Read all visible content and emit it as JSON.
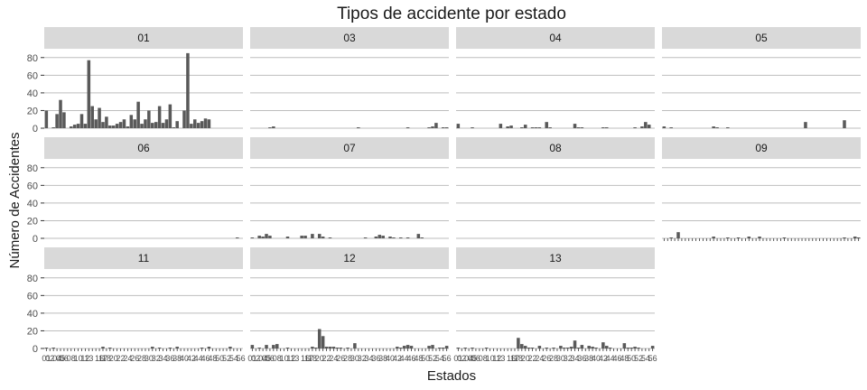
{
  "chart_data": {
    "type": "bar",
    "title": "Tipos de accidente por estado",
    "xlabel": "Estados",
    "ylabel": "Número de Accidentes",
    "ylim": [
      0,
      90
    ],
    "yticks": [
      0,
      20,
      40,
      60,
      80
    ],
    "grid": true,
    "bar_color": "#595959",
    "strip_color": "#d9d9d9",
    "grid_color": "#bebebe",
    "facet_labels": [
      "01",
      "03",
      "04",
      "05",
      "06",
      "07",
      "08",
      "09",
      "11",
      "12",
      "13"
    ],
    "x_categories": [
      "01",
      "02",
      "03",
      "04",
      "05",
      "06",
      "07",
      "08",
      "09",
      "10",
      "11",
      "12",
      "13",
      "14",
      "15",
      "16",
      "17",
      "18",
      "19",
      "20",
      "21",
      "22",
      "23",
      "24",
      "25",
      "26",
      "27",
      "28",
      "29",
      "30",
      "31",
      "32",
      "33",
      "34",
      "35",
      "36",
      "37",
      "38",
      "39",
      "40",
      "41",
      "42",
      "43",
      "44",
      "45",
      "46",
      "47",
      "48",
      "49",
      "50",
      "51",
      "52",
      "53",
      "54",
      "55",
      "56"
    ],
    "x_tick_labels_visible": {
      "01": "01",
      "02": "02",
      "04": "04",
      "05": "05",
      "06": "06",
      "08": "08",
      "10": "10",
      "12": "12",
      "13": "13",
      "16": "16",
      "17": "17",
      "18": "18",
      "20": "20",
      "22": "22",
      "24": "24",
      "26": "26",
      "28": "28",
      "30": "30",
      "32": "32",
      "34": "34",
      "36": "36",
      "38": "38",
      "40": "40",
      "42": "42",
      "44": "44",
      "46": "46",
      "48": "48",
      "50": "50",
      "52": "52",
      "54": "54",
      "56": "56"
    },
    "facets": [
      {
        "label": "01",
        "values": [
          20,
          0,
          1,
          16,
          32,
          18,
          0,
          2,
          4,
          5,
          16,
          5,
          77,
          25,
          10,
          23,
          7,
          13,
          3,
          3,
          5,
          7,
          10,
          2,
          15,
          10,
          30,
          5,
          10,
          20,
          6,
          7,
          25,
          6,
          10,
          27,
          1,
          8,
          0,
          20,
          85,
          5,
          10,
          6,
          8,
          11,
          10,
          0,
          0,
          0,
          0,
          0,
          0,
          0,
          0,
          0
        ]
      },
      {
        "label": "03",
        "values": [
          0,
          0,
          0,
          0,
          0,
          1,
          2,
          0,
          0,
          0,
          0,
          0,
          0,
          0,
          0,
          0,
          0,
          0,
          0,
          0,
          0,
          0,
          0,
          0,
          0,
          0,
          0,
          0,
          0,
          0,
          1,
          0,
          0,
          0,
          0,
          0,
          0,
          0,
          0,
          0,
          0,
          0,
          0,
          0,
          1,
          0,
          0,
          0,
          0,
          0,
          1,
          2,
          6,
          0,
          1,
          1
        ]
      },
      {
        "label": "04",
        "values": [
          5,
          0,
          0,
          0,
          1,
          0,
          0,
          0,
          0,
          0,
          0,
          0,
          5,
          0,
          2,
          3,
          0,
          0,
          1,
          4,
          0,
          1,
          1,
          1,
          0,
          7,
          1,
          0,
          0,
          0,
          0,
          0,
          0,
          5,
          1,
          1,
          0,
          0,
          0,
          0,
          0,
          1,
          1,
          0,
          0,
          0,
          0,
          0,
          0,
          0,
          1,
          0,
          2,
          7,
          4,
          0
        ]
      },
      {
        "label": "05",
        "values": [
          2,
          0,
          1,
          0,
          0,
          0,
          0,
          0,
          0,
          0,
          0,
          0,
          0,
          0,
          2,
          1,
          0,
          0,
          1,
          0,
          0,
          0,
          0,
          0,
          0,
          0,
          0,
          0,
          0,
          0,
          0,
          0,
          0,
          0,
          0,
          0,
          0,
          0,
          0,
          0,
          7,
          0,
          0,
          0,
          0,
          0,
          0,
          0,
          0,
          0,
          0,
          9,
          0,
          0,
          0,
          0
        ]
      },
      {
        "label": "06",
        "values": [
          0,
          0,
          0,
          0,
          0,
          0,
          0,
          0,
          0,
          0,
          0,
          0,
          0,
          0,
          0,
          0,
          0,
          0,
          0,
          0,
          0,
          0,
          0,
          0,
          0,
          0,
          0,
          0,
          0,
          0,
          0,
          0,
          0,
          0,
          0,
          0,
          0,
          0,
          0,
          0,
          0,
          0,
          0,
          0,
          0,
          0,
          0,
          0,
          0,
          0,
          0,
          0,
          0,
          0,
          1,
          0
        ]
      },
      {
        "label": "07",
        "values": [
          1,
          0,
          3,
          2,
          5,
          3,
          0,
          0,
          0,
          0,
          2,
          0,
          0,
          0,
          3,
          3,
          0,
          5,
          0,
          5,
          2,
          0,
          1,
          0,
          0,
          0,
          0,
          0,
          0,
          0,
          0,
          0,
          1,
          0,
          0,
          2,
          4,
          3,
          0,
          2,
          1,
          0,
          1,
          0,
          1,
          0,
          0,
          5,
          1,
          0,
          0,
          0,
          0,
          0,
          0,
          0
        ]
      },
      {
        "label": "08",
        "values": [
          0,
          0,
          0,
          0,
          0,
          0,
          0,
          0,
          0,
          0,
          0,
          0,
          0,
          0,
          0,
          0,
          0,
          0,
          0,
          0,
          0,
          0,
          0,
          0,
          0,
          0,
          0,
          0,
          0,
          0,
          0,
          0,
          0,
          0,
          0,
          0,
          0,
          0,
          0,
          0,
          0,
          0,
          0,
          0,
          0,
          0,
          0,
          0,
          0,
          0,
          0,
          0,
          0,
          0,
          0,
          0
        ]
      },
      {
        "label": "09",
        "values": [
          0,
          0,
          1,
          0,
          7,
          0,
          0,
          0,
          0,
          0,
          0,
          0,
          0,
          0,
          2,
          0,
          0,
          0,
          1,
          0,
          0,
          1,
          0,
          0,
          2,
          0,
          0,
          2,
          0,
          0,
          0,
          0,
          0,
          0,
          1,
          0,
          0,
          0,
          0,
          0,
          0,
          0,
          0,
          0,
          0,
          0,
          0,
          0,
          0,
          0,
          0,
          1,
          0,
          0,
          2,
          1
        ]
      },
      {
        "label": "11",
        "values": [
          1,
          0,
          1,
          0,
          0,
          0,
          0,
          0,
          0,
          0,
          0,
          0,
          0,
          0,
          0,
          0,
          2,
          0,
          1,
          0,
          0,
          0,
          0,
          0,
          0,
          0,
          0,
          0,
          0,
          0,
          2,
          0,
          1,
          0,
          0,
          1,
          0,
          2,
          0,
          0,
          0,
          0,
          0,
          0,
          1,
          0,
          2,
          0,
          0,
          0,
          0,
          0,
          2,
          0,
          0,
          0
        ]
      },
      {
        "label": "12",
        "values": [
          4,
          0,
          1,
          0,
          4,
          0,
          4,
          5,
          0,
          0,
          1,
          0,
          0,
          0,
          0,
          0,
          0,
          2,
          1,
          22,
          14,
          2,
          2,
          2,
          1,
          1,
          0,
          1,
          0,
          6,
          0,
          0,
          0,
          0,
          0,
          0,
          0,
          0,
          0,
          0,
          0,
          2,
          1,
          3,
          4,
          3,
          0,
          0,
          0,
          0,
          3,
          4,
          0,
          1,
          1,
          3
        ]
      },
      {
        "label": "13",
        "values": [
          1,
          0,
          1,
          0,
          1,
          0,
          0,
          0,
          1,
          0,
          0,
          0,
          0,
          0,
          0,
          0,
          0,
          12,
          5,
          3,
          1,
          1,
          0,
          3,
          0,
          1,
          0,
          1,
          0,
          3,
          1,
          1,
          2,
          9,
          1,
          4,
          0,
          3,
          2,
          1,
          0,
          7,
          3,
          1,
          0,
          0,
          0,
          6,
          1,
          1,
          2,
          1,
          0,
          0,
          0,
          3
        ]
      }
    ]
  }
}
